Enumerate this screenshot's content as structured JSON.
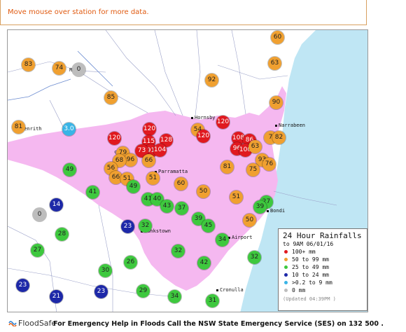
{
  "message": "Move mouse over station for more data.",
  "legend": {
    "title": "24 Hour Rainfalls",
    "subtitle": "to 9AM 06/01/16",
    "rows": [
      {
        "label": "100+ mm",
        "color": "#e0191f"
      },
      {
        "label": "50 to 99 mm",
        "color": "#f0a030"
      },
      {
        "label": "25 to 49 mm",
        "color": "#3ec83e"
      },
      {
        "label": "10 to 24 mm",
        "color": "#1d28a8"
      },
      {
        "label": ">0.2 to 9 mm",
        "color": "#39b4e6"
      },
      {
        "label": "0 mm",
        "color": "#bdbdbd"
      }
    ],
    "updated": "(Updated 04:39PM )"
  },
  "places": {
    "hornsby": "Hornsby",
    "narrabeen": "Narrabeen",
    "penrith": "Penrith",
    "parramatta": "Parramatta",
    "bankstown": "Bankstown",
    "bondi": "Bondi",
    "airport": "Airport",
    "cronulla": "Cronulla",
    "richmond": "Ri   d",
    "castle": "ch"
  },
  "stations": [
    "60",
    "63",
    "83",
    "74",
    "0",
    "92",
    "85",
    "90",
    "81",
    "3.0",
    "54",
    "120",
    "120",
    "120",
    "115",
    "120",
    "128",
    "108",
    "7",
    "82",
    "79",
    "86",
    "96",
    "91",
    "73",
    "104",
    "100",
    "63",
    "93",
    "96",
    "66",
    "76",
    "81",
    "68",
    "56",
    "66",
    "51",
    "49",
    "75",
    "49",
    "51",
    "41",
    "60",
    "50",
    "51",
    "41",
    "40",
    "43",
    "37",
    "14",
    "0",
    "27",
    "39",
    "50",
    "23",
    "32",
    "39",
    "45",
    "28",
    "34",
    "27",
    "32",
    "32",
    "30",
    "26",
    "42",
    "23",
    "29",
    "23",
    "21",
    "34",
    "31"
  ],
  "footer": {
    "logo": "FloodSafe",
    "emergency": "For Emergency Help in Floods Call the NSW State Emergency Service (SES) on 132 500 ."
  }
}
